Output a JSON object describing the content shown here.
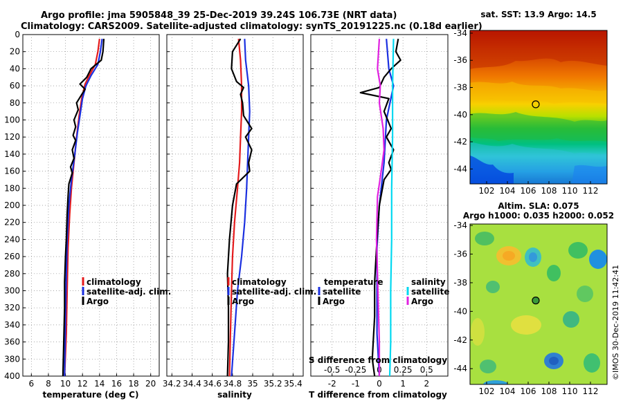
{
  "header": {
    "title_line1": "Argo profile: jma 5905848_39 25-Dec-2019 39.24S 106.73E (NRT data)",
    "title_line2": "Climatology: CARS2009. Satellite-adjusted climatology: synTS_20191225.nc (0.18d earlier)"
  },
  "sst_title": "sat. SST: 13.9 Argo: 14.5",
  "sla_title1": "Altim. SLA: 0.075",
  "sla_title2": "Argo h1000: 0.035 h2000: 0.052",
  "watermark": "©IMOS 30-Dec-2019 11:42:41",
  "colors": {
    "climatology": "#e41a1c",
    "satellite": "#1a2fe0",
    "argo": "#000000",
    "sal_satellite": "#00d8f0",
    "sal_argo": "#e020e0"
  },
  "chart_data": [
    {
      "type": "line",
      "name": "temperature",
      "xlabel": "temperature (deg C)",
      "xlim": [
        5,
        21
      ],
      "xticks": [
        6,
        8,
        10,
        12,
        14,
        16,
        18,
        20
      ],
      "ylim": [
        400,
        0
      ],
      "yticks": [
        0,
        20,
        40,
        60,
        80,
        100,
        120,
        140,
        160,
        180,
        200,
        220,
        240,
        260,
        280,
        300,
        320,
        340,
        360,
        380,
        400
      ],
      "legend": [
        "climatology",
        "satellite-adj. clim.",
        "Argo"
      ],
      "series": [
        {
          "name": "climatology",
          "color": "#e41a1c",
          "points": [
            [
              14.0,
              5
            ],
            [
              13.8,
              20
            ],
            [
              13.5,
              35
            ],
            [
              12.8,
              48
            ],
            [
              12.3,
              58
            ],
            [
              11.9,
              75
            ],
            [
              11.6,
              95
            ],
            [
              11.3,
              120
            ],
            [
              11.0,
              150
            ],
            [
              10.7,
              180
            ],
            [
              10.5,
              210
            ],
            [
              10.3,
              250
            ],
            [
              10.2,
              300
            ],
            [
              10.1,
              350
            ],
            [
              9.9,
              400
            ]
          ]
        },
        {
          "name": "satellite-adj. clim.",
          "color": "#1a2fe0",
          "points": [
            [
              14.3,
              5
            ],
            [
              14.1,
              20
            ],
            [
              13.8,
              35
            ],
            [
              13.0,
              48
            ],
            [
              12.4,
              60
            ],
            [
              12.0,
              75
            ],
            [
              11.7,
              95
            ],
            [
              11.4,
              115
            ],
            [
              11.1,
              140
            ],
            [
              10.7,
              170
            ],
            [
              10.4,
              200
            ],
            [
              10.2,
              240
            ],
            [
              10.1,
              280
            ],
            [
              10.0,
              330
            ],
            [
              9.9,
              400
            ]
          ]
        },
        {
          "name": "Argo",
          "color": "#000000",
          "points": [
            [
              14.5,
              5
            ],
            [
              14.4,
              20
            ],
            [
              14.2,
              30
            ],
            [
              13.0,
              40
            ],
            [
              12.5,
              50
            ],
            [
              11.7,
              58
            ],
            [
              12.3,
              64
            ],
            [
              11.8,
              72
            ],
            [
              11.3,
              80
            ],
            [
              11.5,
              88
            ],
            [
              11.0,
              100
            ],
            [
              11.2,
              108
            ],
            [
              10.9,
              118
            ],
            [
              11.2,
              124
            ],
            [
              10.8,
              135
            ],
            [
              11.0,
              145
            ],
            [
              10.6,
              155
            ],
            [
              10.8,
              162
            ],
            [
              10.4,
              175
            ],
            [
              10.3,
              190
            ],
            [
              10.2,
              210
            ],
            [
              10.1,
              240
            ],
            [
              10.0,
              260
            ],
            [
              9.9,
              290
            ],
            [
              9.9,
              320
            ],
            [
              9.8,
              360
            ],
            [
              9.7,
              400
            ]
          ]
        }
      ]
    },
    {
      "type": "line",
      "name": "salinity",
      "xlabel": "salinity",
      "xlim": [
        34.15,
        35.5
      ],
      "xticks": [
        34.2,
        34.4,
        34.6,
        34.8,
        35,
        35.2,
        35.4
      ],
      "ylim": [
        400,
        0
      ],
      "legend": [
        "climatology",
        "satellite-adj. clim.",
        "Argo"
      ],
      "series": [
        {
          "name": "climatology",
          "color": "#e41a1c",
          "points": [
            [
              34.86,
              5
            ],
            [
              34.88,
              30
            ],
            [
              34.89,
              60
            ],
            [
              34.89,
              90
            ],
            [
              34.88,
              120
            ],
            [
              34.87,
              150
            ],
            [
              34.85,
              180
            ],
            [
              34.82,
              220
            ],
            [
              34.8,
              260
            ],
            [
              34.79,
              300
            ],
            [
              34.78,
              350
            ],
            [
              34.77,
              400
            ]
          ]
        },
        {
          "name": "satellite-adj. clim.",
          "color": "#1a2fe0",
          "points": [
            [
              34.92,
              5
            ],
            [
              34.93,
              30
            ],
            [
              34.96,
              60
            ],
            [
              34.97,
              90
            ],
            [
              34.96,
              120
            ],
            [
              34.95,
              150
            ],
            [
              34.94,
              180
            ],
            [
              34.92,
              220
            ],
            [
              34.89,
              260
            ],
            [
              34.85,
              300
            ],
            [
              34.82,
              350
            ],
            [
              34.79,
              400
            ]
          ]
        },
        {
          "name": "Argo",
          "color": "#000000",
          "points": [
            [
              34.88,
              5
            ],
            [
              34.8,
              20
            ],
            [
              34.79,
              40
            ],
            [
              34.84,
              55
            ],
            [
              34.91,
              62
            ],
            [
              34.88,
              70
            ],
            [
              34.9,
              80
            ],
            [
              34.91,
              95
            ],
            [
              34.99,
              110
            ],
            [
              34.93,
              120
            ],
            [
              34.99,
              135
            ],
            [
              34.96,
              150
            ],
            [
              34.97,
              160
            ],
            [
              34.84,
              175
            ],
            [
              34.8,
              200
            ],
            [
              34.77,
              240
            ],
            [
              34.75,
              280
            ],
            [
              34.76,
              320
            ],
            [
              34.76,
              360
            ],
            [
              34.75,
              400
            ]
          ]
        }
      ]
    },
    {
      "type": "line",
      "name": "differences",
      "xlabel": "T difference from climatology",
      "xlabel_top": "S difference from climatology",
      "xlim": [
        -2.9,
        2.9
      ],
      "xticks": [
        -2,
        -1,
        0,
        1,
        2
      ],
      "sticks": [
        "-0.5",
        "-0.25",
        "0",
        "0.25",
        "0.5"
      ],
      "ylim": [
        400,
        0
      ],
      "legend_temperature_title": "temperature",
      "legend_salinity_title": "salinity",
      "legend_temperature": [
        "satellite",
        "Argo"
      ],
      "legend_salinity": [
        "satellite",
        "Argo"
      ],
      "series": [
        {
          "name": "temperature satellite",
          "color": "#1a2fe0",
          "points": [
            [
              0.3,
              5
            ],
            [
              0.4,
              40
            ],
            [
              0.6,
              60
            ],
            [
              0.3,
              100
            ],
            [
              0.2,
              150
            ],
            [
              0.0,
              200
            ],
            [
              -0.1,
              250
            ],
            [
              -0.1,
              300
            ],
            [
              -0.1,
              350
            ],
            [
              0.0,
              400
            ]
          ]
        },
        {
          "name": "temperature Argo",
          "color": "#000000",
          "points": [
            [
              0.8,
              5
            ],
            [
              0.7,
              20
            ],
            [
              0.9,
              30
            ],
            [
              0.5,
              40
            ],
            [
              0.2,
              50
            ],
            [
              0.0,
              62
            ],
            [
              -0.8,
              68
            ],
            [
              0.4,
              75
            ],
            [
              0.2,
              90
            ],
            [
              0.5,
              110
            ],
            [
              0.3,
              120
            ],
            [
              0.6,
              135
            ],
            [
              0.4,
              150
            ],
            [
              0.5,
              158
            ],
            [
              0.2,
              170
            ],
            [
              0.0,
              200
            ],
            [
              -0.1,
              240
            ],
            [
              -0.2,
              290
            ],
            [
              -0.2,
              330
            ],
            [
              -0.3,
              380
            ],
            [
              -0.2,
              400
            ]
          ]
        },
        {
          "name": "salinity satellite",
          "color": "#00d8f0",
          "points": [
            [
              0.15,
              5
            ],
            [
              0.14,
              60
            ],
            [
              0.14,
              120
            ],
            [
              0.13,
              180
            ],
            [
              0.13,
              240
            ],
            [
              0.12,
              300
            ],
            [
              0.12,
              360
            ],
            [
              0.11,
              400
            ]
          ]
        },
        {
          "name": "salinity Argo",
          "color": "#e020e0",
          "points": [
            [
              0.0,
              5
            ],
            [
              -0.02,
              40
            ],
            [
              0.01,
              60
            ],
            [
              0.0,
              80
            ],
            [
              0.04,
              110
            ],
            [
              0.05,
              135
            ],
            [
              0.02,
              160
            ],
            [
              -0.02,
              190
            ],
            [
              -0.03,
              240
            ],
            [
              -0.02,
              280
            ],
            [
              -0.01,
              320
            ],
            [
              0.0,
              360
            ],
            [
              0.0,
              400
            ]
          ]
        }
      ]
    },
    {
      "type": "heatmap",
      "name": "sst map",
      "xticks": [
        "102",
        "104",
        "106",
        "108",
        "110",
        "112"
      ],
      "yticks": [
        "-34",
        "-36",
        "-38",
        "-40",
        "-42",
        "-44"
      ],
      "marker_lon": 106.73,
      "marker_lat": -39.24
    },
    {
      "type": "heatmap",
      "name": "sla map",
      "xticks": [
        "102",
        "104",
        "106",
        "108",
        "110",
        "112"
      ],
      "yticks": [
        "-34",
        "-36",
        "-38",
        "-40",
        "-42",
        "-44"
      ],
      "marker_lon": 106.73,
      "marker_lat": -39.24
    }
  ]
}
